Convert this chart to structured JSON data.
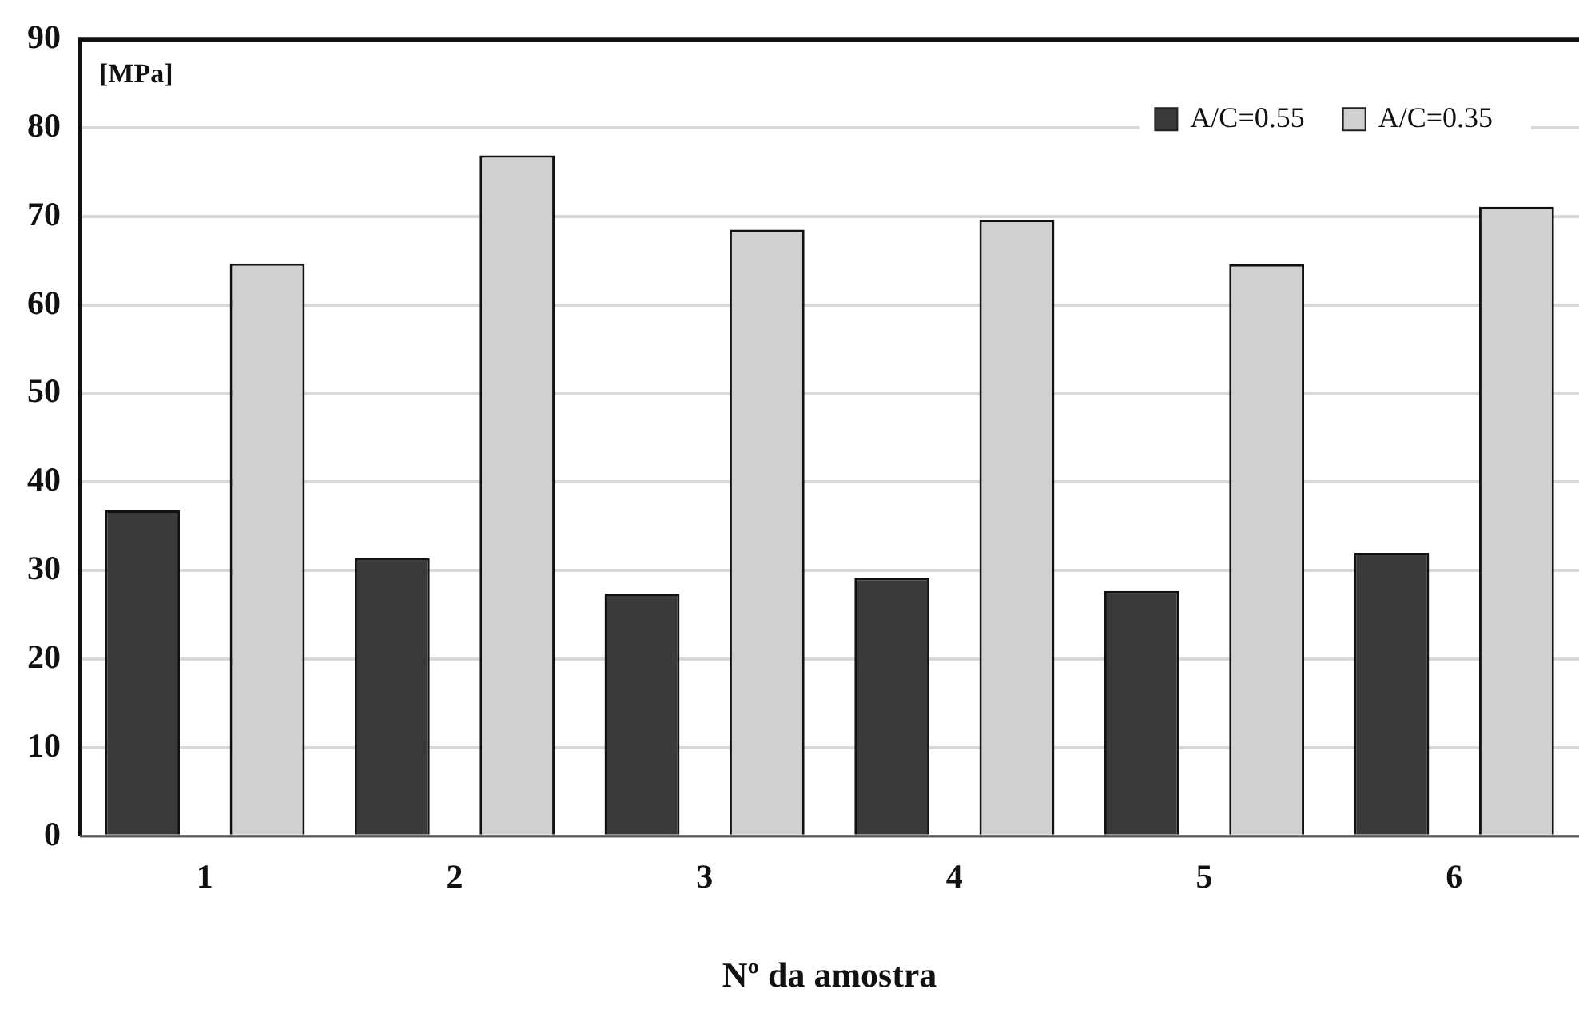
{
  "chart_data": {
    "type": "bar",
    "xlabel": "Nº da amostra",
    "ylabel": "[MPa]",
    "categories": [
      "1",
      "2",
      "3",
      "4",
      "5",
      "6"
    ],
    "series": [
      {
        "name": "A/C=0.55",
        "color": "#3a3a3a",
        "values": [
          36.8,
          31.4,
          27.4,
          29.2,
          27.7,
          32.0
        ]
      },
      {
        "name": "A/C=0.35",
        "color": "#d0d0d0",
        "values": [
          64.7,
          76.9,
          68.5,
          69.6,
          64.6,
          71.1
        ]
      }
    ],
    "ylim": [
      0,
      90
    ],
    "yticks": [
      0,
      10,
      20,
      30,
      40,
      50,
      60,
      70,
      80,
      90
    ],
    "grid": "y",
    "legend": "top right"
  }
}
